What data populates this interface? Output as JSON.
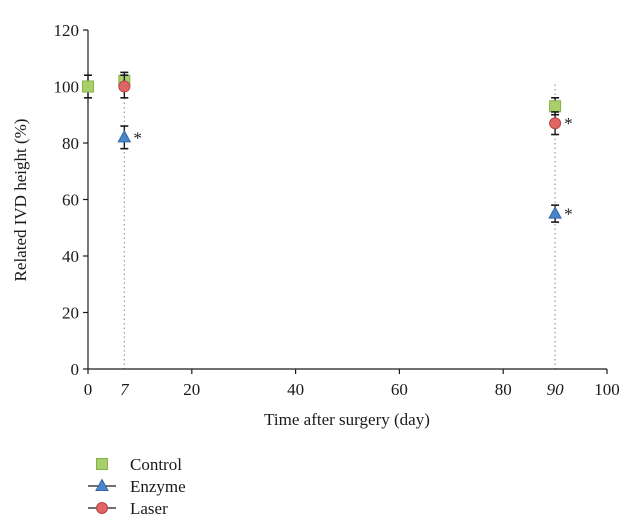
{
  "chart_data": {
    "type": "scatter",
    "xlabel": "Time after surgery (day)",
    "ylabel": "Related IVD height (%)",
    "xlim": [
      0,
      100
    ],
    "ylim": [
      0,
      120
    ],
    "x_ticks": [
      "0",
      "20",
      "40",
      "60",
      "80",
      "100"
    ],
    "x_ticks_special": [
      "7",
      "90"
    ],
    "y_ticks": [
      "0",
      "20",
      "40",
      "60",
      "80",
      "100",
      "120"
    ],
    "reference_lines_x": [
      7,
      90
    ],
    "grid": false,
    "legend_position": "bottom-left",
    "series": [
      {
        "name": "Control",
        "marker": "square",
        "color": "#a9cf6a",
        "points": [
          {
            "x": 0,
            "y": 100,
            "err": 4
          },
          {
            "x": 7,
            "y": 102,
            "err": 3
          },
          {
            "x": 90,
            "y": 93,
            "err": 3
          }
        ]
      },
      {
        "name": "Enzyme",
        "marker": "triangle",
        "color": "#4a86c8",
        "points": [
          {
            "x": 7,
            "y": 82,
            "err": 4,
            "sig": "*"
          },
          {
            "x": 90,
            "y": 55,
            "err": 3,
            "sig": "*"
          }
        ]
      },
      {
        "name": "Laser",
        "marker": "circle",
        "color": "#e06666",
        "points": [
          {
            "x": 7,
            "y": 100,
            "err": 4
          },
          {
            "x": 90,
            "y": 87,
            "err": 4,
            "sig": "*"
          }
        ]
      }
    ]
  }
}
